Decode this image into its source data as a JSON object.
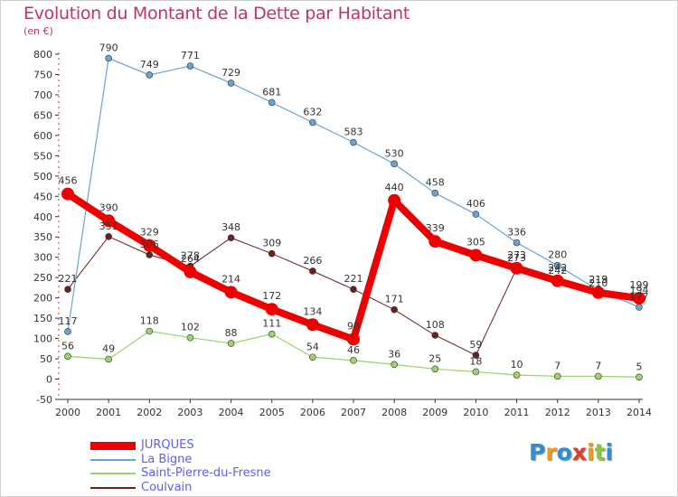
{
  "title": "Evolution du Montant de la Dette par Habitant",
  "unit_label": "(en €)",
  "logo": {
    "letters": [
      {
        "ch": "P",
        "color": "#2f8fd6"
      },
      {
        "ch": "r",
        "color": "#f29a1a"
      },
      {
        "ch": "o",
        "color": "#2f8fd6"
      },
      {
        "ch": "x",
        "color": "#e23b2a"
      },
      {
        "ch": "i",
        "color": "#f29a1a"
      },
      {
        "ch": "t",
        "color": "#8cc63f"
      },
      {
        "ch": "i",
        "color": "#2f8fd6"
      }
    ]
  },
  "chart_data": {
    "type": "line",
    "title": "Evolution du Montant de la Dette par Habitant",
    "ylabel": "(en €)",
    "xlabel": "",
    "x": [
      2000,
      2001,
      2002,
      2003,
      2004,
      2005,
      2006,
      2007,
      2008,
      2009,
      2010,
      2011,
      2012,
      2013,
      2014
    ],
    "ylim": [
      -50,
      800
    ],
    "yticks": [
      -50,
      0,
      50,
      100,
      150,
      200,
      250,
      300,
      350,
      400,
      450,
      500,
      550,
      600,
      650,
      700,
      750,
      800
    ],
    "grid": false,
    "legend_position": "bottom-left",
    "series": [
      {
        "name": "Coulvain",
        "color": "#6b1f1f",
        "width": 1,
        "marker": 3.5,
        "values": [
          221,
          351,
          306,
          278,
          348,
          309,
          266,
          221,
          171,
          108,
          59,
          273,
          242,
          210,
          194
        ]
      },
      {
        "name": "Saint-Pierre-du-Fresne",
        "color": "#9ad46a",
        "width": 1.2,
        "marker": 3.5,
        "values": [
          56,
          49,
          118,
          102,
          88,
          111,
          54,
          46,
          36,
          25,
          18,
          10,
          7,
          7,
          5
        ]
      },
      {
        "name": "La Bigne",
        "color": "#6aa3d2",
        "width": 1.2,
        "marker": 3.5,
        "values": [
          117,
          790,
          749,
          771,
          729,
          681,
          632,
          583,
          530,
          458,
          406,
          336,
          280,
          219,
          177
        ]
      },
      {
        "name": "JURQUES",
        "color": "#ee0000",
        "width": 8,
        "marker": 7,
        "values": [
          456,
          390,
          329,
          264,
          214,
          172,
          134,
          98,
          440,
          339,
          305,
          273,
          242,
          213,
          199
        ]
      }
    ],
    "data_labels": [
      {
        "series": "JURQUES",
        "labels": [
          "456",
          "390",
          "329",
          "264",
          "214",
          "172",
          "134",
          "98",
          "440",
          "339",
          "305",
          "273",
          "242",
          "213",
          "199"
        ]
      },
      {
        "series": "La Bigne",
        "labels": [
          "117",
          "790",
          "749",
          "771",
          "729",
          "681",
          "632",
          "583",
          "530",
          "458",
          "406",
          "336",
          "280",
          "219",
          "177"
        ]
      },
      {
        "series": "Saint-Pierre-du-Fresne",
        "labels": [
          "56",
          "49",
          "118",
          "102",
          "88",
          "111",
          "54",
          "46",
          "36",
          "25",
          "18",
          "10",
          "7",
          "7",
          "5"
        ]
      },
      {
        "series": "Coulvain",
        "labels": [
          "221",
          "351",
          "306",
          "278",
          "348",
          "309",
          "266",
          "221",
          "171",
          "108",
          "59",
          "273",
          "242",
          "210",
          "194"
        ]
      }
    ]
  },
  "legend": [
    {
      "label": "JURQUES",
      "color": "#ee0000",
      "thickness": 9
    },
    {
      "label": "La Bigne",
      "color": "#6aa3d2",
      "thickness": 2
    },
    {
      "label": "Saint-Pierre-du-Fresne",
      "color": "#9ad46a",
      "thickness": 2
    },
    {
      "label": "Coulvain",
      "color": "#6b1f1f",
      "thickness": 2
    }
  ]
}
